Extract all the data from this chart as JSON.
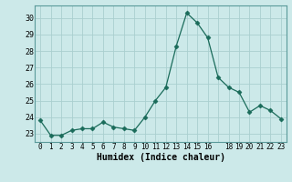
{
  "x": [
    0,
    1,
    2,
    3,
    4,
    5,
    6,
    7,
    8,
    9,
    10,
    11,
    12,
    13,
    14,
    15,
    16,
    17,
    18,
    19,
    20,
    21,
    22,
    23
  ],
  "y": [
    23.8,
    22.9,
    22.9,
    23.2,
    23.3,
    23.3,
    23.7,
    23.4,
    23.3,
    23.2,
    24.0,
    25.0,
    25.8,
    28.3,
    30.3,
    29.7,
    28.8,
    26.4,
    25.8,
    25.5,
    24.3,
    24.7,
    24.4,
    23.9
  ],
  "xlabel": "Humidex (Indice chaleur)",
  "ylim": [
    22.5,
    30.75
  ],
  "xlim": [
    -0.5,
    23.5
  ],
  "yticks": [
    23,
    24,
    25,
    26,
    27,
    28,
    29,
    30
  ],
  "xtick_labels": [
    "0",
    "1",
    "2",
    "3",
    "4",
    "5",
    "6",
    "7",
    "8",
    "9",
    "10",
    "11",
    "12",
    "13",
    "14",
    "15",
    "16",
    "",
    "18",
    "19",
    "20",
    "21",
    "22",
    "23"
  ],
  "line_color": "#1a6b5a",
  "marker": "D",
  "marker_size": 2.5,
  "bg_color": "#cce9e9",
  "grid_color": "#aacfcf",
  "spine_color": "#5a9a9a"
}
